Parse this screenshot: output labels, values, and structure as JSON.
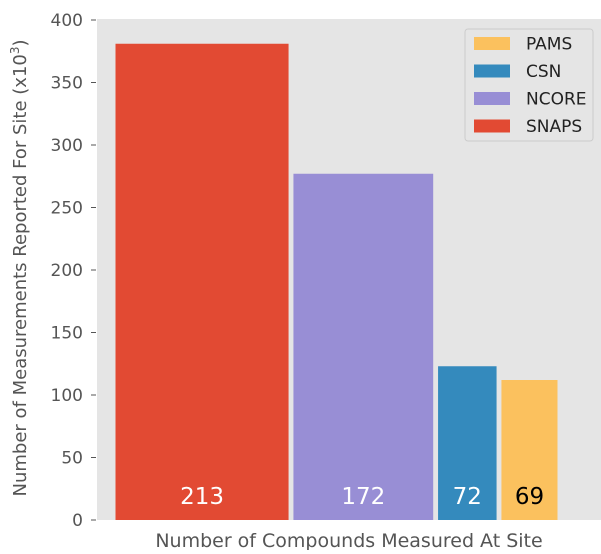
{
  "chart_data": {
    "type": "bar",
    "xlabel": "Number of Compounds Measured At Site",
    "ylabel_prefix": "Number of Measurements Reported For Site (x10",
    "ylabel_exponent": "3",
    "ylabel_suffix": ")",
    "ylim": [
      0,
      400
    ],
    "yticks": [
      0,
      50,
      100,
      150,
      200,
      250,
      300,
      350,
      400
    ],
    "grid": false,
    "legend_placement": "top-right",
    "bars": [
      {
        "name": "SNAPS",
        "count_label": "213",
        "x_start": 0,
        "x_end": 213,
        "value": 381,
        "color": "#E24A33",
        "label_color": "#ffffff"
      },
      {
        "name": "NCORE",
        "count_label": "172",
        "x_start": 219,
        "x_end": 391,
        "value": 277,
        "color": "#988ED5",
        "label_color": "#ffffff"
      },
      {
        "name": "CSN",
        "count_label": "72",
        "x_start": 397,
        "x_end": 469,
        "value": 123,
        "color": "#348ABD",
        "label_color": "#ffffff"
      },
      {
        "name": "PAMS",
        "count_label": "69",
        "x_start": 475,
        "x_end": 544,
        "value": 112,
        "color": "#FBC15E",
        "label_color": "#000000"
      }
    ],
    "legend": [
      {
        "name": "PAMS",
        "color": "#FBC15E"
      },
      {
        "name": "CSN",
        "color": "#348ABD"
      },
      {
        "name": "NCORE",
        "color": "#988ED5"
      },
      {
        "name": "SNAPS",
        "color": "#E24A33"
      }
    ],
    "colors": {
      "plot_background": "#E5E5E5",
      "axis_text": "#555555"
    }
  }
}
